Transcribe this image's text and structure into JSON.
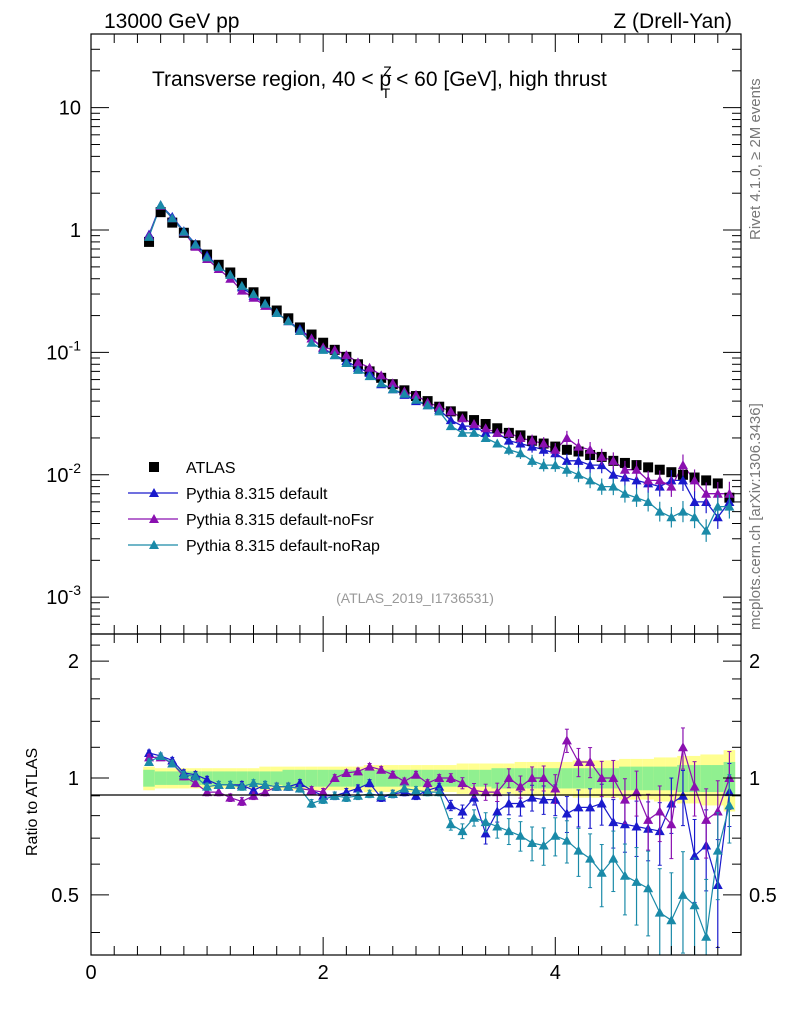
{
  "header": {
    "left": "13000 GeV pp",
    "right": "Z (Drell-Yan)",
    "title_prefix": "Transverse region, 40 < p",
    "title_sup": "Z",
    "title_sub": "T",
    "title_suffix": " < 60 [GeV], high thrust"
  },
  "side": {
    "top": "Rivet 4.1.0, ≥ 2M events",
    "bottom": "mcplots.cern.ch [arXiv:1306.3436]"
  },
  "watermark": "(ATLAS_2019_I1736531)",
  "ratio_ylabel": "Ratio to ATLAS",
  "colors": {
    "data": "#000000",
    "default": "#1a1acc",
    "noFsr": "#8a10b0",
    "noRap": "#1a8aa8",
    "band_inner": "#90f090",
    "band_outer": "#ffff90"
  },
  "legend": [
    {
      "label": "ATLAS",
      "key": "data"
    },
    {
      "label": "Pythia 8.315 default",
      "key": "default"
    },
    {
      "label": "Pythia 8.315 default-noFsr",
      "key": "noFsr"
    },
    {
      "label": "Pythia 8.315 default-noRap",
      "key": "noRap"
    }
  ],
  "chart_data": [
    {
      "type": "scatter",
      "yscale": "log",
      "xlim": [
        0,
        5.6
      ],
      "ylim": [
        0.0005,
        40
      ],
      "y_ticks": [
        "10",
        "1",
        "10^-1",
        "10^-2",
        "10^-3"
      ],
      "x": [
        0.5,
        0.6,
        0.7,
        0.8,
        0.9,
        1.0,
        1.1,
        1.2,
        1.3,
        1.4,
        1.5,
        1.6,
        1.7,
        1.8,
        1.9,
        2.0,
        2.1,
        2.2,
        2.3,
        2.4,
        2.5,
        2.6,
        2.7,
        2.8,
        2.9,
        3.0,
        3.1,
        3.2,
        3.3,
        3.4,
        3.5,
        3.6,
        3.7,
        3.8,
        3.9,
        4.0,
        4.1,
        4.2,
        4.3,
        4.4,
        4.5,
        4.6,
        4.7,
        4.8,
        4.9,
        5.0,
        5.1,
        5.2,
        5.3,
        5.4,
        5.5
      ],
      "series": [
        {
          "name": "ATLAS",
          "values": [
            0.8,
            1.4,
            1.15,
            0.95,
            0.75,
            0.63,
            0.52,
            0.45,
            0.37,
            0.31,
            0.26,
            0.22,
            0.19,
            0.16,
            0.14,
            0.12,
            0.105,
            0.092,
            0.08,
            0.07,
            0.062,
            0.055,
            0.049,
            0.044,
            0.04,
            0.036,
            0.033,
            0.03,
            0.028,
            0.026,
            0.024,
            0.022,
            0.021,
            0.019,
            0.018,
            0.017,
            0.016,
            0.0155,
            0.0145,
            0.014,
            0.013,
            0.0125,
            0.012,
            0.0115,
            0.011,
            0.0105,
            0.01,
            0.0095,
            0.009,
            0.0085,
            0.0065
          ]
        },
        {
          "name": "Pythia 8.315 default",
          "values": [
            0.92,
            1.6,
            1.28,
            0.98,
            0.77,
            0.62,
            0.5,
            0.43,
            0.34,
            0.29,
            0.25,
            0.21,
            0.18,
            0.155,
            0.13,
            0.108,
            0.095,
            0.085,
            0.075,
            0.068,
            0.055,
            0.05,
            0.045,
            0.04,
            0.037,
            0.034,
            0.028,
            0.025,
            0.025,
            0.022,
            0.022,
            0.019,
            0.018,
            0.017,
            0.016,
            0.015,
            0.013,
            0.013,
            0.012,
            0.012,
            0.01,
            0.0095,
            0.009,
            0.0085,
            0.008,
            0.009,
            0.009,
            0.006,
            0.006,
            0.0045,
            0.006
          ]
        },
        {
          "name": "Pythia 8.315 default-noFsr",
          "values": [
            0.9,
            1.58,
            1.25,
            0.96,
            0.73,
            0.58,
            0.48,
            0.4,
            0.32,
            0.28,
            0.24,
            0.21,
            0.18,
            0.15,
            0.13,
            0.11,
            0.105,
            0.095,
            0.083,
            0.075,
            0.065,
            0.056,
            0.048,
            0.045,
            0.039,
            0.036,
            0.033,
            0.029,
            0.026,
            0.024,
            0.022,
            0.022,
            0.02,
            0.019,
            0.018,
            0.016,
            0.02,
            0.017,
            0.016,
            0.014,
            0.013,
            0.011,
            0.011,
            0.009,
            0.009,
            0.008,
            0.012,
            0.009,
            0.007,
            0.007,
            0.007
          ]
        },
        {
          "name": "Pythia 8.315 default-noRap",
          "values": [
            0.88,
            1.6,
            1.25,
            0.97,
            0.76,
            0.6,
            0.5,
            0.43,
            0.35,
            0.3,
            0.25,
            0.21,
            0.18,
            0.15,
            0.12,
            0.105,
            0.095,
            0.082,
            0.072,
            0.064,
            0.056,
            0.05,
            0.046,
            0.041,
            0.037,
            0.033,
            0.025,
            0.022,
            0.022,
            0.02,
            0.018,
            0.016,
            0.015,
            0.013,
            0.012,
            0.012,
            0.011,
            0.01,
            0.009,
            0.008,
            0.008,
            0.007,
            0.0065,
            0.006,
            0.005,
            0.0045,
            0.005,
            0.0045,
            0.0035,
            0.0055,
            0.0055
          ]
        }
      ]
    },
    {
      "type": "scatter",
      "title": "Ratio to ATLAS",
      "xlim": [
        0,
        5.6
      ],
      "ylim": [
        0.35,
        2.35
      ],
      "x_ticks": [
        "0",
        "2",
        "4"
      ],
      "y_ticks": [
        "2",
        "1",
        "0.5"
      ],
      "x": [
        0.5,
        0.6,
        0.7,
        0.8,
        0.9,
        1.0,
        1.1,
        1.2,
        1.3,
        1.4,
        1.5,
        1.6,
        1.7,
        1.8,
        1.9,
        2.0,
        2.1,
        2.2,
        2.3,
        2.4,
        2.5,
        2.6,
        2.7,
        2.8,
        2.9,
        3.0,
        3.1,
        3.2,
        3.3,
        3.4,
        3.5,
        3.6,
        3.7,
        3.8,
        3.9,
        4.0,
        4.1,
        4.2,
        4.3,
        4.4,
        4.5,
        4.6,
        4.7,
        4.8,
        4.9,
        5.0,
        5.1,
        5.2,
        5.3,
        5.4,
        5.5
      ],
      "series": [
        {
          "name": "Pythia 8.315 default",
          "values": [
            1.16,
            1.14,
            1.11,
            1.03,
            1.02,
            0.99,
            0.96,
            0.96,
            0.96,
            0.93,
            0.96,
            0.95,
            0.95,
            0.97,
            0.93,
            0.9,
            0.9,
            0.92,
            0.94,
            0.97,
            0.89,
            0.91,
            0.92,
            0.9,
            0.93,
            0.95,
            0.85,
            0.82,
            0.89,
            0.72,
            0.82,
            0.86,
            0.86,
            0.89,
            0.88,
            0.88,
            0.81,
            0.84,
            0.84,
            0.86,
            0.77,
            0.76,
            0.75,
            0.74,
            0.73,
            0.86,
            0.9,
            0.63,
            0.67,
            0.53,
            0.92
          ]
        },
        {
          "name": "Pythia 8.315 default-noFsr",
          "values": [
            1.13,
            1.13,
            1.09,
            1.01,
            0.97,
            0.92,
            0.92,
            0.89,
            0.87,
            0.9,
            0.92,
            0.95,
            0.95,
            0.94,
            0.93,
            0.92,
            1.0,
            1.03,
            1.04,
            1.07,
            1.05,
            1.02,
            0.98,
            1.02,
            0.97,
            1.0,
            1.0,
            0.97,
            0.93,
            0.92,
            0.92,
            1.0,
            0.95,
            1.0,
            1.0,
            0.94,
            1.25,
            1.1,
            1.1,
            1.0,
            1.0,
            0.88,
            0.92,
            0.78,
            0.82,
            0.76,
            1.2,
            0.95,
            0.78,
            0.82,
            1.0
          ]
        },
        {
          "name": "Pythia 8.315 default-noRap",
          "values": [
            1.1,
            1.14,
            1.09,
            1.02,
            1.01,
            0.95,
            0.96,
            0.96,
            0.95,
            0.97,
            0.96,
            0.95,
            0.95,
            0.94,
            0.86,
            0.88,
            0.9,
            0.89,
            0.9,
            0.91,
            0.9,
            0.91,
            0.94,
            0.93,
            0.92,
            0.92,
            0.76,
            0.73,
            0.79,
            0.77,
            0.75,
            0.73,
            0.71,
            0.68,
            0.67,
            0.71,
            0.69,
            0.65,
            0.62,
            0.57,
            0.62,
            0.56,
            0.54,
            0.52,
            0.45,
            0.43,
            0.5,
            0.47,
            0.39,
            0.65,
            0.85
          ]
        }
      ],
      "band_inner_halfwidth": [
        0.05,
        0.04,
        0.04,
        0.04,
        0.04,
        0.04,
        0.04,
        0.04,
        0.04,
        0.04,
        0.04,
        0.04,
        0.05,
        0.05,
        0.05,
        0.05,
        0.05,
        0.05,
        0.05,
        0.05,
        0.05,
        0.05,
        0.05,
        0.05,
        0.05,
        0.05,
        0.05,
        0.05,
        0.05,
        0.05,
        0.06,
        0.06,
        0.06,
        0.06,
        0.06,
        0.06,
        0.06,
        0.06,
        0.06,
        0.06,
        0.06,
        0.07,
        0.07,
        0.07,
        0.07,
        0.07,
        0.08,
        0.08,
        0.08,
        0.08,
        0.1
      ],
      "band_outer_halfwidth": [
        0.07,
        0.06,
        0.06,
        0.06,
        0.06,
        0.06,
        0.06,
        0.06,
        0.06,
        0.06,
        0.07,
        0.07,
        0.07,
        0.07,
        0.07,
        0.07,
        0.07,
        0.07,
        0.07,
        0.08,
        0.08,
        0.08,
        0.08,
        0.08,
        0.08,
        0.08,
        0.08,
        0.09,
        0.09,
        0.09,
        0.09,
        0.09,
        0.1,
        0.1,
        0.1,
        0.1,
        0.1,
        0.11,
        0.11,
        0.11,
        0.11,
        0.12,
        0.12,
        0.12,
        0.13,
        0.13,
        0.14,
        0.14,
        0.15,
        0.15,
        0.18
      ]
    }
  ]
}
